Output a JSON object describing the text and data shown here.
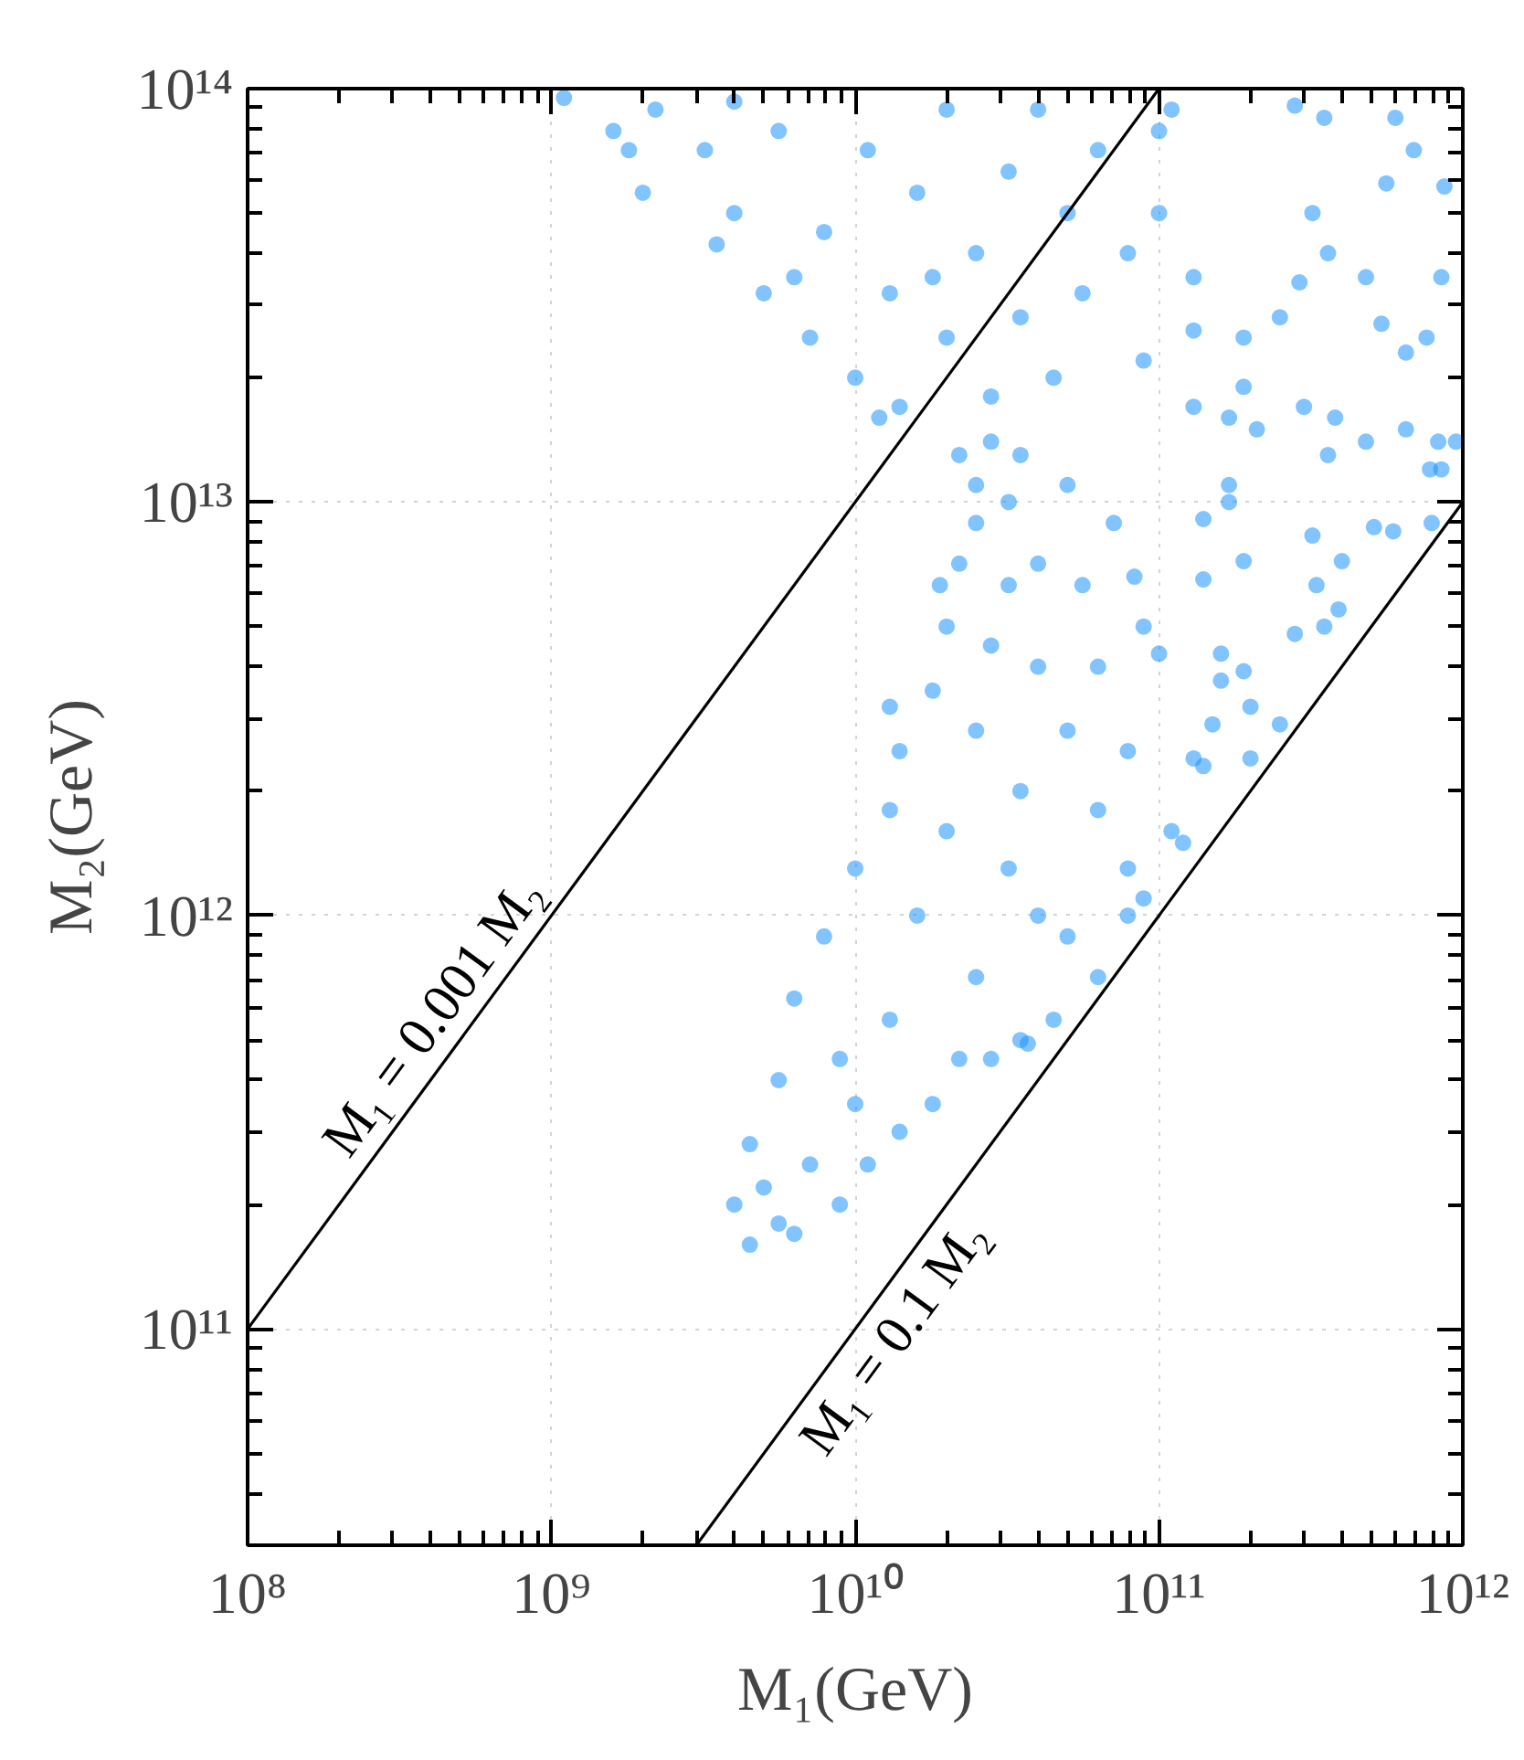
{
  "chart_data": {
    "type": "scatter",
    "xlabel": "M₁(GeV)",
    "ylabel": "M₂(GeV)",
    "log": "xy",
    "grid": true,
    "xlim": [
      100000000.0,
      1000000000000.0
    ],
    "ylim": [
      30000000000.0,
      100000000000000.0
    ],
    "xticks": [
      {
        "value": 100000000.0,
        "label": "10⁸"
      },
      {
        "value": 1000000000.0,
        "label": "10⁹"
      },
      {
        "value": 10000000000.0,
        "label": "10¹⁰"
      },
      {
        "value": 100000000000.0,
        "label": "10¹¹"
      },
      {
        "value": 1000000000000.0,
        "label": "10¹²"
      }
    ],
    "yticks": [
      {
        "value": 100000000000.0,
        "label": "10¹¹"
      },
      {
        "value": 1000000000000.0,
        "label": "10¹²"
      },
      {
        "value": 10000000000000.0,
        "label": "10¹³"
      },
      {
        "value": 100000000000000.0,
        "label": "10¹⁴"
      }
    ],
    "series": [
      {
        "color": "#1a94ff",
        "marker": "circle",
        "x": [
          1100000000.0,
          1600000000.0,
          2200000000.0,
          2000000000.0,
          3200000000.0,
          3500000000.0,
          4000000000.0,
          5000000000.0,
          5600000000.0,
          7100000000.0,
          7900000000.0,
          10000000000.0,
          11000000000.0,
          13000000000.0,
          14000000000.0,
          16000000000.0,
          20000000000.0,
          20000000000.0,
          25000000000.0,
          32000000000.0,
          35000000000.0,
          40000000000.0,
          50000000000.0,
          63000000000.0,
          56000000000.0,
          79000000000.0,
          100000000000.0,
          89000000000.0,
          4000000000.0,
          28000000000.0,
          45000000000.0,
          130000000000.0,
          12000000000.0,
          1800000000.0,
          6300000000.0,
          18000000000.0,
          110000000000.0,
          100000000000.0,
          22000000000.0,
          28000000000.0,
          32000000000.0,
          25000000000.0,
          35000000000.0,
          22000000000.0,
          32000000000.0,
          20000000000.0,
          28000000000.0,
          18000000000.0,
          40000000000.0,
          25000000000.0,
          14000000000.0,
          50000000000.0,
          35000000000.0,
          13000000000.0,
          20000000000.0,
          63000000000.0,
          10000000000.0,
          32000000000.0,
          79000000000.0,
          16000000000.0,
          7900000000.0,
          50000000000.0,
          89000000000.0,
          25000000000.0,
          6300000000.0,
          13000000000.0,
          45000000000.0,
          22000000000.0,
          5600000000.0,
          10000000000.0,
          28000000000.0,
          4500000000.0,
          7100000000.0,
          14000000000.0,
          4000000000.0,
          5600000000.0,
          8900000000.0,
          4500000000.0,
          6300000000.0,
          11000000000.0,
          5000000000.0,
          18000000000.0,
          35000000000.0,
          63000000000.0,
          37000000000.0,
          19000000000.0,
          40000000000.0,
          25000000000.0,
          13000000000.0,
          79000000000.0,
          110000000000.0,
          40000000000.0,
          8900000000.0,
          280000000000.0,
          350000000000.0,
          600000000000.0,
          690000000000.0,
          560000000000.0,
          870000000000.0,
          320000000000.0,
          360000000000.0,
          480000000000.0,
          850000000000.0,
          290000000000.0,
          540000000000.0,
          760000000000.0,
          650000000000.0,
          250000000000.0,
          190000000000.0,
          190000000000.0,
          300000000000.0,
          380000000000.0,
          480000000000.0,
          650000000000.0,
          830000000000.0,
          950000000000.0,
          780000000000.0,
          510000000000.0,
          590000000000.0,
          790000000000.0,
          360000000000.0,
          210000000000.0,
          170000000000.0,
          170000000000.0,
          320000000000.0,
          400000000000.0,
          330000000000.0,
          390000000000.0,
          350000000000.0,
          280000000000.0,
          250000000000.0,
          200000000000.0,
          190000000000.0,
          160000000000.0,
          140000000000.0,
          190000000000.0,
          140000000000.0,
          170000000000.0,
          130000000000.0,
          130000000000.0,
          850000000000.0,
          160000000000.0,
          200000000000.0,
          150000000000.0,
          130000000000.0,
          83000000000.0,
          100000000000.0,
          140000000000.0,
          120000000000.0,
          79000000000.0,
          50000000000.0,
          71000000000.0,
          56000000000.0,
          89000000000.0,
          63000000000.0
        ],
        "values": [
          95000000000000.0,
          79000000000000.0,
          89000000000000.0,
          56000000000000.0,
          71000000000000.0,
          42000000000000.0,
          50000000000000.0,
          32000000000000.0,
          79000000000000.0,
          25000000000000.0,
          45000000000000.0,
          20000000000000.0,
          71000000000000.0,
          32000000000000.0,
          17000000000000.0,
          56000000000000.0,
          89000000000000.0,
          25000000000000.0,
          40000000000000.0,
          63000000000000.0,
          28000000000000.0,
          89000000000000.0,
          50000000000000.0,
          71000000000000.0,
          32000000000000.0,
          40000000000000.0,
          79000000000000.0,
          22000000000000.0,
          93000000000000.0,
          18000000000000.0,
          20000000000000.0,
          35000000000000.0,
          16000000000000.0,
          71000000000000.0,
          35000000000000.0,
          35000000000000.0,
          89000000000000.0,
          50000000000000.0,
          13000000000000.0,
          14000000000000.0,
          10000000000000.0,
          8900000000000.0,
          13000000000000.0,
          7100000000000.0,
          6300000000000.0,
          5000000000000.0,
          4500000000000.0,
          3500000000000.0,
          4000000000000.0,
          2800000000000.0,
          2500000000000.0,
          2800000000000.0,
          2000000000000.0,
          1800000000000.0,
          1600000000000.0,
          1800000000000.0,
          1300000000000.0,
          1300000000000.0,
          1300000000000.0,
          1000000000000.0,
          890000000000.0,
          890000000000.0,
          1100000000000.0,
          710000000000.0,
          630000000000.0,
          560000000000.0,
          560000000000.0,
          450000000000.0,
          400000000000.0,
          350000000000.0,
          450000000000.0,
          280000000000.0,
          250000000000.0,
          300000000000.0,
          200000000000.0,
          180000000000.0,
          200000000000.0,
          160000000000.0,
          170000000000.0,
          250000000000.0,
          220000000000.0,
          350000000000.0,
          500000000000.0,
          710000000000.0,
          490000000000.0,
          6300000000000.0,
          7100000000000.0,
          11000000000000.0,
          3200000000000.0,
          2500000000000.0,
          1600000000000.0,
          1000000000000.0,
          450000000000.0,
          91000000000000.0,
          85000000000000.0,
          85000000000000.0,
          71000000000000.0,
          59000000000000.0,
          58000000000000.0,
          50000000000000.0,
          40000000000000.0,
          35000000000000.0,
          35000000000000.0,
          34000000000000.0,
          27000000000000.0,
          25000000000000.0,
          23000000000000.0,
          28000000000000.0,
          25000000000000.0,
          19000000000000.0,
          17000000000000.0,
          16000000000000.0,
          14000000000000.0,
          15000000000000.0,
          14000000000000.0,
          14000000000000.0,
          12000000000000.0,
          8700000000000.0,
          8500000000000.0,
          8900000000000.0,
          13000000000000.0,
          15000000000000.0,
          11000000000000.0,
          10000000000000.0,
          8300000000000.0,
          7200000000000.0,
          6300000000000.0,
          5500000000000.0,
          5000000000000.0,
          4800000000000.0,
          2900000000000.0,
          2400000000000.0,
          3900000000000.0,
          3700000000000.0,
          6500000000000.0,
          7200000000000.0,
          9100000000000.0,
          16000000000000.0,
          17000000000000.0,
          26000000000000.0,
          12000000000000.0,
          4300000000000.0,
          3200000000000.0,
          2900000000000.0,
          2400000000000.0,
          6600000000000.0,
          4300000000000.0,
          2300000000000.0,
          1500000000000.0,
          1000000000000.0,
          11000000000000.0,
          8900000000000.0,
          6300000000000.0,
          5000000000000.0,
          4000000000000.0
        ]
      },
      {
        "type": "line",
        "name": "M₁ = 0.001 M₂",
        "color": "#000000",
        "line_style": "solid",
        "x": [
          100000000.0,
          100000000000.0
        ],
        "values": [
          100000000000.0,
          100000000000000.0
        ]
      },
      {
        "type": "line",
        "name": "M₁ = 0.1 M₂",
        "color": "#000000",
        "line_style": "solid",
        "x": [
          3000000000.0,
          1000000000000.0
        ],
        "values": [
          30000000000.0,
          10000000000000.0
        ]
      }
    ]
  }
}
